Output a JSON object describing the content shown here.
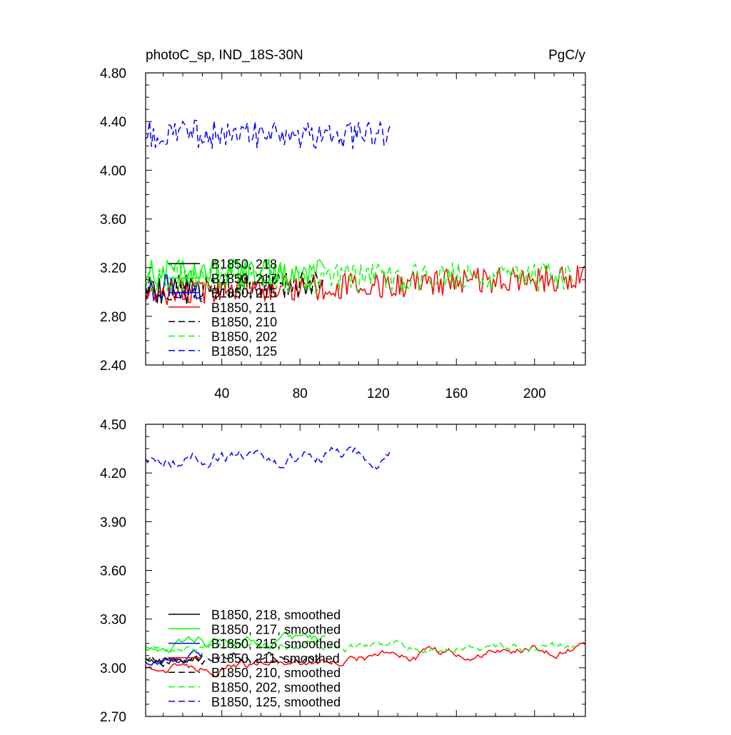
{
  "chart_data": [
    {
      "type": "line",
      "title": "photoC_sp, IND_18S-30N",
      "units": "PgC/y",
      "xlabel": "",
      "ylabel": "",
      "xlim": [
        1,
        226
      ],
      "ylim": [
        2.4,
        4.8
      ],
      "xticks": [
        "40",
        "80",
        "120",
        "160",
        "200"
      ],
      "yticks": [
        "2.40",
        "2.80",
        "3.20",
        "3.60",
        "4.00",
        "4.40",
        "4.80"
      ],
      "legend_position": "lower-left",
      "series": [
        {
          "name": "B1850, 218",
          "color": "#000000",
          "dash": "solid",
          "length": 30,
          "base": 3.02,
          "amp": 0.12,
          "trend": 0.0,
          "seed": 11
        },
        {
          "name": "B1850, 217",
          "color": "#00ff00",
          "dash": "solid",
          "length": 93,
          "base": 3.14,
          "amp": 0.13,
          "trend": 0.02,
          "seed": 22
        },
        {
          "name": "B1850, 215",
          "color": "#0000ff",
          "dash": "solid",
          "length": 30,
          "base": 3.03,
          "amp": 0.11,
          "trend": 0.0,
          "seed": 33
        },
        {
          "name": "B1850, 211",
          "color": "#ff0000",
          "dash": "solid",
          "length": 226,
          "base": 2.99,
          "amp": 0.11,
          "trend": 0.13,
          "seed": 44
        },
        {
          "name": "B1850, 210",
          "color": "#000000",
          "dash": "dash",
          "length": 92,
          "base": 3.04,
          "amp": 0.11,
          "trend": 0.04,
          "seed": 55
        },
        {
          "name": "B1850, 202",
          "color": "#00ff00",
          "dash": "dash",
          "length": 220,
          "base": 3.1,
          "amp": 0.12,
          "trend": 0.03,
          "seed": 66
        },
        {
          "name": "B1850, 125",
          "color": "#0000ff",
          "dash": "dash",
          "length": 126,
          "base": 4.3,
          "amp": 0.12,
          "trend": -0.04,
          "seed": 77
        }
      ]
    },
    {
      "type": "line",
      "title": "",
      "units": "",
      "xlabel": "",
      "ylabel": "",
      "xlim": [
        1,
        226
      ],
      "ylim": [
        2.7,
        4.5
      ],
      "xticks": [],
      "yticks": [
        "2.70",
        "3.00",
        "3.30",
        "3.60",
        "3.90",
        "4.20",
        "4.50"
      ],
      "legend_position": "lower-left",
      "series": [
        {
          "name": "B1850, 218, smoothed",
          "color": "#000000",
          "dash": "solid",
          "length": 30,
          "base": 3.06,
          "amp": 0.04,
          "trend": 0.0,
          "seed": 12
        },
        {
          "name": "B1850, 217, smoothed",
          "color": "#00ff00",
          "dash": "solid",
          "length": 93,
          "base": 3.15,
          "amp": 0.04,
          "trend": 0.03,
          "seed": 23
        },
        {
          "name": "B1850, 215, smoothed",
          "color": "#0000ff",
          "dash": "solid",
          "length": 30,
          "base": 3.05,
          "amp": 0.04,
          "trend": 0.0,
          "seed": 34
        },
        {
          "name": "B1850, 211, smoothed",
          "color": "#ff0000",
          "dash": "solid",
          "length": 226,
          "base": 2.99,
          "amp": 0.035,
          "trend": 0.14,
          "seed": 45
        },
        {
          "name": "B1850, 210, smoothed",
          "color": "#000000",
          "dash": "dash",
          "length": 92,
          "base": 3.05,
          "amp": 0.04,
          "trend": 0.06,
          "seed": 56
        },
        {
          "name": "B1850, 202, smoothed",
          "color": "#00ff00",
          "dash": "dash",
          "length": 220,
          "base": 3.12,
          "amp": 0.035,
          "trend": 0.01,
          "seed": 67
        },
        {
          "name": "B1850, 125, smoothed",
          "color": "#0000ff",
          "dash": "dash",
          "length": 126,
          "base": 4.31,
          "amp": 0.06,
          "trend": -0.05,
          "seed": 78
        }
      ]
    }
  ]
}
